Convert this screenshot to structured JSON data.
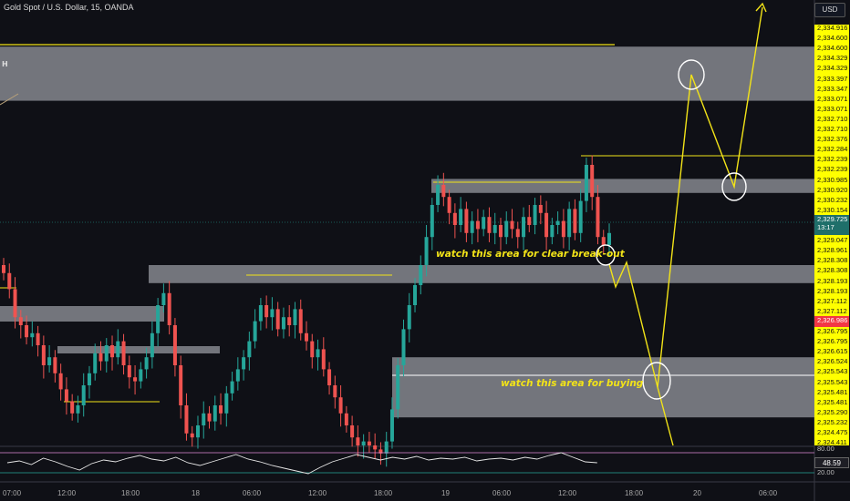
{
  "header": {
    "title": "Gold Spot / U.S. Dollar, 15, OANDA",
    "currency_button": "USD"
  },
  "price_scale": {
    "ticks": [
      "2,334.916",
      "2,334.600",
      "2,334.600",
      "2,334.329",
      "2,334.329",
      "2,333.397",
      "2,333.347",
      "2,333.071",
      "2,333.071",
      "2,332.710",
      "2,332.710",
      "2,332.376",
      "2,332.284",
      "2,332.239",
      "2,332.239",
      "2,330.985",
      "2,330.920",
      "2,330.232",
      "2,330.154",
      "",
      "",
      "2,329.047",
      "2,328.961",
      "2,328.308",
      "2,328.308",
      "2,328.193",
      "2,328.193",
      "2,327.112",
      "2,327.112",
      "",
      "2,326.795",
      "2,326.795",
      "2,326.615",
      "2,326.524",
      "2,325.543",
      "2,325.543",
      "2,325.481",
      "2,325.481",
      "2,325.290",
      "2,325.232",
      "2,324.475",
      "2,324.411"
    ],
    "current_price": "2,329.725",
    "countdown": "13:17",
    "red_tag": "2,326.986",
    "colors": {
      "scale_bg": "#ffff00",
      "current_tag": "#1f6f6a",
      "red_tag": "#f23645"
    }
  },
  "annotations": {
    "breakout_note": "watch this area for clear break-out",
    "buying_note": "watch this area for buying",
    "edge_label": "H"
  },
  "time_axis": [
    "07:00",
    "12:00",
    "18:00",
    "18",
    "06:00",
    "12:00",
    "18:00",
    "19",
    "06:00",
    "12:00",
    "18:00",
    "20",
    "06:00"
  ],
  "oscillator": {
    "upper_label": "80.00",
    "lower_label": "20.00",
    "current_value": "48.59"
  },
  "colors": {
    "up_candle": "#26a69a",
    "down_candle": "#ef5350",
    "zone": "#8a8c93",
    "drawing": "#f2e318"
  },
  "chart_data": {
    "type": "candlestick",
    "symbol": "Gold Spot / U.S. Dollar",
    "timeframe": "15",
    "y_axis_range": [
      2324.4,
      2334.9
    ],
    "zones": [
      {
        "low": 2333.0,
        "high": 2334.35
      },
      {
        "low": 2330.7,
        "high": 2331.05
      },
      {
        "low": 2328.45,
        "high": 2328.9
      },
      {
        "low": 2325.1,
        "high": 2326.6
      }
    ],
    "resistance_line": 2334.4,
    "close": [
      2328.7,
      2328.3,
      2327.6,
      2327.4,
      2327.1,
      2327.2,
      2326.9,
      2326.4,
      2326.6,
      2326.2,
      2325.8,
      2325.5,
      2325.2,
      2325.4,
      2325.9,
      2326.2,
      2326.7,
      2326.5,
      2326.9,
      2326.6,
      2327.0,
      2326.4,
      2326.1,
      2326.0,
      2326.3,
      2326.6,
      2327.2,
      2327.9,
      2328.2,
      2327.4,
      2326.4,
      2325.4,
      2324.7,
      2324.6,
      2324.9,
      2325.2,
      2325.0,
      2325.4,
      2325.2,
      2325.7,
      2326.0,
      2326.3,
      2326.6,
      2327.0,
      2327.5,
      2327.9,
      2327.6,
      2327.8,
      2327.3,
      2327.6,
      2327.4,
      2327.8,
      2327.2,
      2327.0,
      2326.6,
      2326.8,
      2326.3,
      2325.9,
      2325.6,
      2325.2,
      2324.9,
      2324.6,
      2324.4,
      2324.5,
      2324.4,
      2324.3,
      2324.2,
      2324.5,
      2325.3,
      2326.4,
      2327.3,
      2327.9,
      2328.4,
      2328.9,
      2329.6,
      2330.4,
      2330.9,
      2330.6,
      2330.2,
      2329.9,
      2330.3,
      2329.7,
      2330.0,
      2329.8,
      2330.1,
      2329.7,
      2329.9,
      2329.6,
      2330.0,
      2329.8,
      2329.6,
      2330.1,
      2329.9,
      2330.4,
      2330.2,
      2329.6,
      2329.9,
      2330.0,
      2329.6,
      2330.3,
      2329.7,
      2330.5,
      2331.4,
      2330.6,
      2329.6,
      2329.4,
      2329.7
    ]
  }
}
